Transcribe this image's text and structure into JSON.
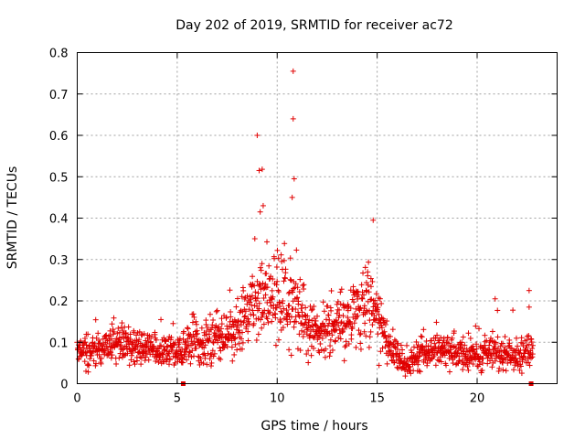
{
  "chart_data": {
    "type": "scatter",
    "title": "Day 202 of 2019, SRMTID for receiver ac72",
    "xlabel": "GPS time / hours",
    "ylabel": "SRMTID / TECUs",
    "xlim": [
      0,
      24
    ],
    "ylim": [
      0,
      0.8
    ],
    "xticks": [
      0,
      5,
      10,
      15,
      20
    ],
    "yticks": [
      0,
      0.1,
      0.2,
      0.3,
      0.4,
      0.5,
      0.6,
      0.7,
      0.8
    ],
    "xtick_labels": [
      "0",
      "5",
      "10",
      "15",
      "20"
    ],
    "ytick_labels": [
      "0",
      "0.1",
      "0.2",
      "0.3",
      "0.4",
      "0.5",
      "0.6",
      "0.7",
      "0.8"
    ],
    "grid": true,
    "marker": "+",
    "color": "#e00000",
    "notable_points": [
      {
        "x": 10.8,
        "y": 0.755
      },
      {
        "x": 10.8,
        "y": 0.64
      },
      {
        "x": 9.0,
        "y": 0.6
      },
      {
        "x": 9.1,
        "y": 0.515
      },
      {
        "x": 9.25,
        "y": 0.518
      },
      {
        "x": 10.85,
        "y": 0.495
      },
      {
        "x": 9.3,
        "y": 0.43
      },
      {
        "x": 9.15,
        "y": 0.415
      },
      {
        "x": 14.8,
        "y": 0.395
      },
      {
        "x": 10.75,
        "y": 0.45
      },
      {
        "x": 22.6,
        "y": 0.225
      },
      {
        "x": 20.9,
        "y": 0.205
      },
      {
        "x": 22.6,
        "y": 0.185
      }
    ],
    "zero_markers": [
      {
        "x": 5.3,
        "y": 0
      },
      {
        "x": 22.7,
        "y": 0
      }
    ],
    "baseline_profile": {
      "hours": [
        0,
        1,
        2,
        3,
        4,
        5,
        6,
        7,
        8,
        8.5,
        9,
        9.5,
        10,
        10.5,
        11,
        11.5,
        12,
        13,
        14,
        14.5,
        15,
        15.5,
        16,
        16.5,
        17,
        18,
        19,
        20,
        21,
        22,
        22.8
      ],
      "median": [
        0.08,
        0.075,
        0.1,
        0.09,
        0.08,
        0.085,
        0.1,
        0.11,
        0.13,
        0.18,
        0.2,
        0.22,
        0.21,
        0.2,
        0.18,
        0.13,
        0.12,
        0.14,
        0.17,
        0.2,
        0.16,
        0.1,
        0.07,
        0.04,
        0.07,
        0.08,
        0.075,
        0.07,
        0.08,
        0.07,
        0.08
      ],
      "spread": [
        0.03,
        0.03,
        0.035,
        0.03,
        0.03,
        0.03,
        0.04,
        0.045,
        0.05,
        0.07,
        0.08,
        0.09,
        0.09,
        0.09,
        0.08,
        0.06,
        0.05,
        0.06,
        0.07,
        0.08,
        0.06,
        0.04,
        0.03,
        0.02,
        0.03,
        0.03,
        0.03,
        0.03,
        0.035,
        0.03,
        0.04
      ]
    },
    "x_end": 22.8,
    "samples_per_hour": 70
  }
}
